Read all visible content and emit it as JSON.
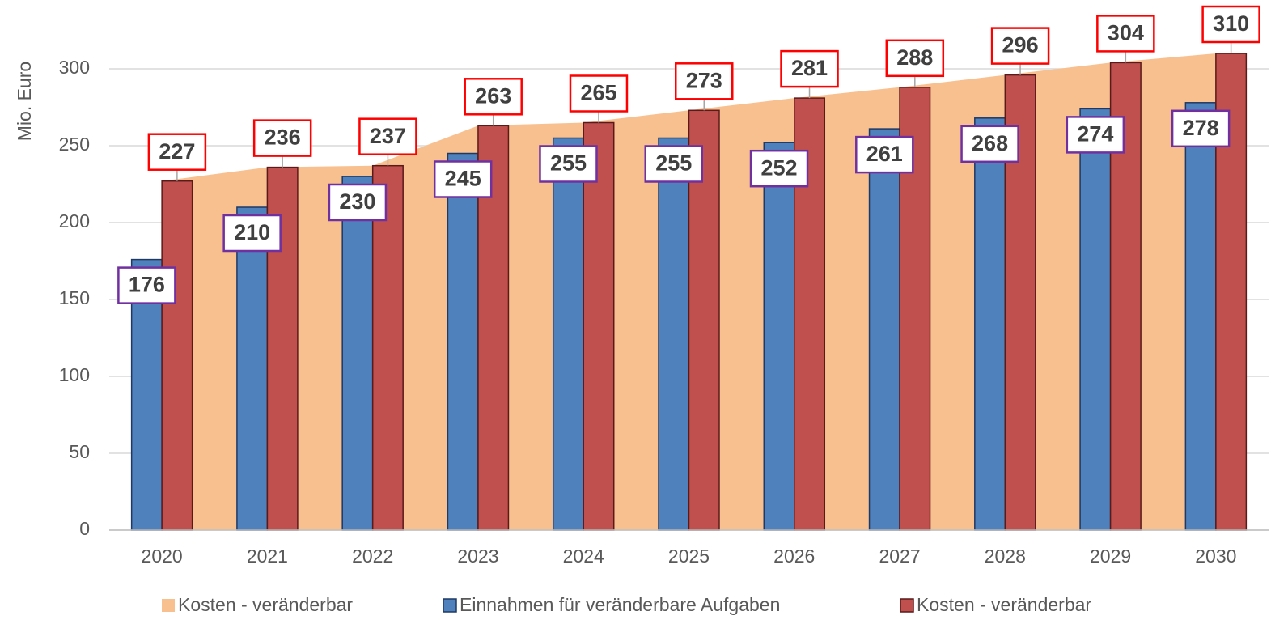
{
  "chart_data": {
    "type": "bar",
    "y_label": "Mio. Euro",
    "categories": [
      "2020",
      "2021",
      "2022",
      "2023",
      "2024",
      "2025",
      "2026",
      "2027",
      "2028",
      "2029",
      "2030"
    ],
    "series": [
      {
        "name": "Kosten - veränderbar",
        "type": "area",
        "color": "#f9c08f",
        "values": [
          227,
          236,
          237,
          263,
          265,
          273,
          281,
          288,
          296,
          304,
          310
        ]
      },
      {
        "name": "Einnahmen für veränderbare Aufgaben",
        "type": "bar",
        "color": "#4f81bd",
        "label_border": "#7030a0",
        "values": [
          176,
          210,
          230,
          245,
          255,
          255,
          252,
          261,
          268,
          274,
          278
        ]
      },
      {
        "name": "Kosten - veränderbar",
        "type": "bar",
        "color": "#c0504d",
        "label_border": "#ff0000",
        "values": [
          227,
          236,
          237,
          263,
          265,
          273,
          281,
          288,
          296,
          304,
          310
        ]
      }
    ],
    "ylim": [
      0,
      330
    ],
    "yticks": [
      0,
      50,
      100,
      150,
      200,
      250,
      300
    ],
    "grid": true,
    "legend": "bottom"
  }
}
